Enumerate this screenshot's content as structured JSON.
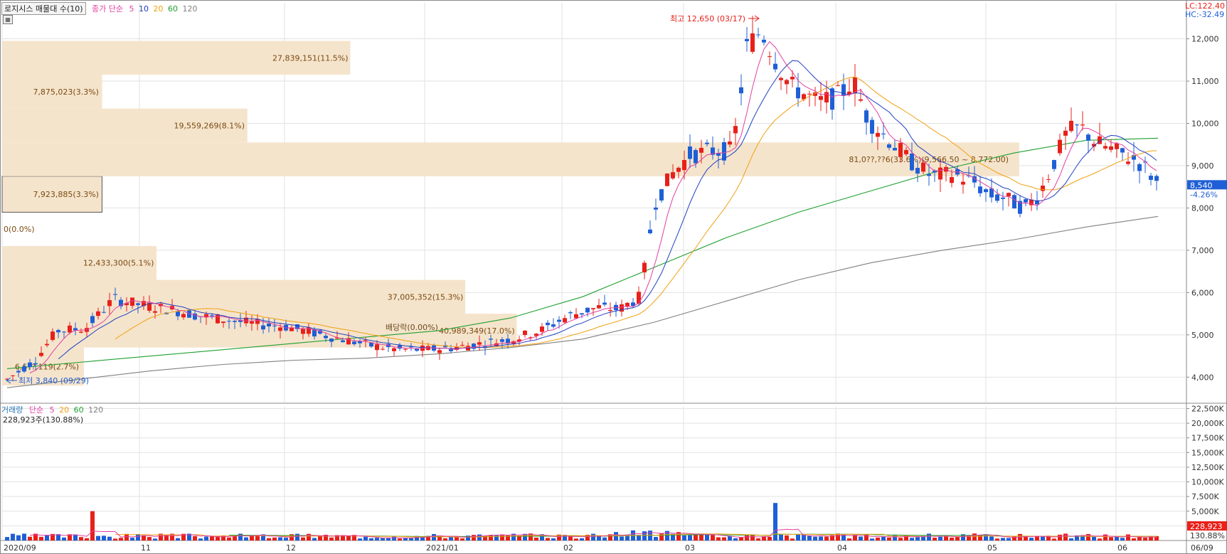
{
  "price_header": {
    "title": "로지시스 매물대 수(10)",
    "ma_label": "종가 단순",
    "periods": [
      "5",
      "10",
      "20",
      "60",
      "120"
    ]
  },
  "volume_header": {
    "title": "거래량",
    "ma_label": "단순",
    "periods": [
      "5",
      "20",
      "60",
      "120"
    ],
    "current": "228,923주(130.88%)"
  },
  "lc_label": "LC:122.40",
  "hc_label": "HC:-32.49",
  "colors": {
    "up": "#e8201a",
    "down": "#1f5fd6",
    "ma5": "#e040a0",
    "ma10": "#2040c0",
    "ma20": "#f0a010",
    "ma60": "#20a030",
    "ma120": "#808080",
    "volume_profile": "#f5e4cc",
    "volume_profile_text": "#7a4a10"
  },
  "chart_data": [
    {
      "type": "candlestick",
      "title": "로지시스 매물대 수(10)",
      "y_axis_ticks": [
        "4,000",
        "5,000",
        "6,000",
        "7,000",
        "8,000",
        "9,000",
        "10,000",
        "11,000",
        "12,000"
      ],
      "x_axis_ticks": [
        "2020/09",
        "11",
        "12",
        "2021/01",
        "02",
        "03",
        "04",
        "05",
        "06",
        "06/09"
      ],
      "ylim": [
        3400,
        12850
      ],
      "current_price": "8,540",
      "current_change": "-4.26%",
      "high_annotation": "최고 12,650 (03/17)",
      "low_annotation": "최저 3,840 (09/29)",
      "dividend_annotation": "배당락(0.00%)",
      "moving_averages": [
        "5",
        "10",
        "20",
        "60",
        "120"
      ],
      "volume_profile": [
        {
          "label": "6,6??,119(2.7%)",
          "price_low": 3800,
          "price_high": 4700,
          "pct": 2.7,
          "current_band": false
        },
        {
          "label": "40,989,349(17.0%)",
          "price_low": 4700,
          "price_high": 5500,
          "pct": 17.0,
          "current_band": false
        },
        {
          "label": "37,005,352(15.3%)",
          "price_low": 5500,
          "price_high": 6300,
          "pct": 15.3,
          "current_band": false
        },
        {
          "label": "12,433,300(5.1%)",
          "price_low": 6300,
          "price_high": 7100,
          "pct": 5.1,
          "current_band": false
        },
        {
          "label": "0(0.0%)",
          "price_low": 7100,
          "price_high": 7900,
          "pct": 0.0,
          "current_band": false
        },
        {
          "label": "7,923,885(3.3%)",
          "price_low": 7900,
          "price_high": 8750,
          "pct": 3.3,
          "current_band": false
        },
        {
          "label": "81,0??,??6(33.6%)(9,566.50 ~ 8,772.00)",
          "price_low": 8750,
          "price_high": 9550,
          "pct": 33.6,
          "current_band": true
        },
        {
          "label": "19,559,269(8.1%)",
          "price_low": 9550,
          "price_high": 10350,
          "pct": 8.1,
          "current_band": false
        },
        {
          "label": "7,875,023(3.3%)",
          "price_low": 10350,
          "price_high": 11150,
          "pct": 3.3,
          "current_band": false
        },
        {
          "label": "27,839,151(11.5%)",
          "price_low": 11150,
          "price_high": 11950,
          "pct": 11.5,
          "current_band": false
        }
      ],
      "ma60_points": [
        4200,
        4350,
        4500,
        4650,
        4800,
        4950,
        5100,
        5400,
        5900,
        6600,
        7300,
        7900,
        8400,
        8900,
        9300,
        9600,
        9650
      ],
      "ma120_points": [
        3750,
        3950,
        4150,
        4300,
        4400,
        4450,
        4550,
        4700,
        4900,
        5300,
        5800,
        6300,
        6700,
        7000,
        7250,
        7550,
        7800
      ]
    },
    {
      "type": "bar",
      "title": "거래량",
      "y_axis_ticks": [
        "2,500K",
        "5,000K",
        "7,500K",
        "10,000K",
        "12,500K",
        "15,000K",
        "17,500K",
        "20,000K",
        "22,500K"
      ],
      "ylim": [
        0,
        22800000
      ],
      "current_volume": "228,923",
      "current_pct": "130.88%"
    }
  ]
}
